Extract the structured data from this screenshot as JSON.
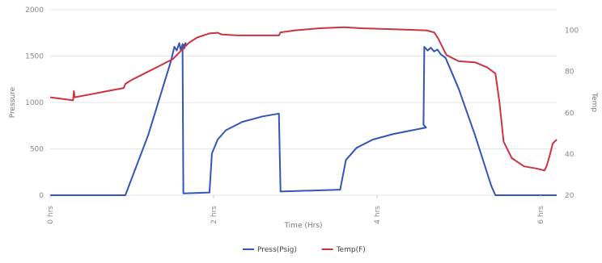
{
  "chart_data": {
    "type": "line",
    "title": "",
    "xlabel": "Time (Hrs)",
    "ylabel_left": "Pressure",
    "ylabel_right": "Temp",
    "x_ticks": [
      {
        "x": 0,
        "label": "0 hrs"
      },
      {
        "x": 2,
        "label": "2 hrs"
      },
      {
        "x": 4,
        "label": "4 hrs"
      },
      {
        "x": 6,
        "label": "6 hrs"
      }
    ],
    "xlim": [
      0,
      6.2
    ],
    "ylim_left": [
      0,
      2000
    ],
    "yticks_left": [
      0,
      500,
      1000,
      1500,
      2000
    ],
    "ylim_right": [
      20,
      110
    ],
    "yticks_right": [
      20,
      40,
      60,
      80,
      100
    ],
    "grid": true,
    "legend_position": "bottom",
    "series": [
      {
        "name": "Press(Psig)",
        "color": "#3355bb",
        "axis": "left",
        "points": [
          [
            0,
            0
          ],
          [
            0.92,
            0
          ],
          [
            1.2,
            650
          ],
          [
            1.48,
            1450
          ],
          [
            1.52,
            1600
          ],
          [
            1.55,
            1560
          ],
          [
            1.58,
            1640
          ],
          [
            1.6,
            1560
          ],
          [
            1.62,
            1630
          ],
          [
            1.64,
            1580
          ],
          [
            1.66,
            1640
          ],
          [
            1.6,
            1580
          ],
          [
            1.62,
            1620
          ],
          [
            1.63,
            20
          ],
          [
            1.95,
            30
          ],
          [
            1.98,
            450
          ],
          [
            2.05,
            600
          ],
          [
            2.15,
            700
          ],
          [
            2.35,
            790
          ],
          [
            2.6,
            850
          ],
          [
            2.8,
            880
          ],
          [
            2.82,
            40
          ],
          [
            3.55,
            60
          ],
          [
            3.62,
            380
          ],
          [
            3.75,
            510
          ],
          [
            3.95,
            600
          ],
          [
            4.2,
            660
          ],
          [
            4.6,
            730
          ],
          [
            4.57,
            760
          ],
          [
            4.58,
            1600
          ],
          [
            4.62,
            1560
          ],
          [
            4.66,
            1590
          ],
          [
            4.7,
            1550
          ],
          [
            4.74,
            1570
          ],
          [
            4.78,
            1520
          ],
          [
            4.84,
            1480
          ],
          [
            5.0,
            1150
          ],
          [
            5.2,
            650
          ],
          [
            5.4,
            100
          ],
          [
            5.45,
            0
          ],
          [
            6.2,
            0
          ]
        ]
      },
      {
        "name": "Temp(F)",
        "color": "#cc3344",
        "axis": "right",
        "points": [
          [
            0,
            67.5
          ],
          [
            0.2,
            66.5
          ],
          [
            0.28,
            66.0
          ],
          [
            0.29,
            70.5
          ],
          [
            0.3,
            67.5
          ],
          [
            0.5,
            69.0
          ],
          [
            0.7,
            70.5
          ],
          [
            0.9,
            72.0
          ],
          [
            0.92,
            74.0
          ],
          [
            1.0,
            76.0
          ],
          [
            1.1,
            78.0
          ],
          [
            1.2,
            80.0
          ],
          [
            1.3,
            82.0
          ],
          [
            1.4,
            84.0
          ],
          [
            1.5,
            86.0
          ],
          [
            1.6,
            90.0
          ],
          [
            1.7,
            94.0
          ],
          [
            1.8,
            96.5
          ],
          [
            1.95,
            98.5
          ],
          [
            2.05,
            98.8
          ],
          [
            2.1,
            98.0
          ],
          [
            2.3,
            97.5
          ],
          [
            2.6,
            97.5
          ],
          [
            2.8,
            97.5
          ],
          [
            2.82,
            99.0
          ],
          [
            3.0,
            100.0
          ],
          [
            3.3,
            101.0
          ],
          [
            3.6,
            101.5
          ],
          [
            3.8,
            101.0
          ],
          [
            4.2,
            100.5
          ],
          [
            4.6,
            100.0
          ],
          [
            4.7,
            99.0
          ],
          [
            4.75,
            96.0
          ],
          [
            4.85,
            88.0
          ],
          [
            5.0,
            85.0
          ],
          [
            5.2,
            84.5
          ],
          [
            5.35,
            82.0
          ],
          [
            5.45,
            79.0
          ],
          [
            5.5,
            65.0
          ],
          [
            5.55,
            46.0
          ],
          [
            5.65,
            38.0
          ],
          [
            5.8,
            34.0
          ],
          [
            5.95,
            33.0
          ],
          [
            6.05,
            32.0
          ],
          [
            6.08,
            34.5
          ],
          [
            6.12,
            40.0
          ],
          [
            6.15,
            45.0
          ],
          [
            6.2,
            47.0
          ]
        ]
      }
    ]
  }
}
